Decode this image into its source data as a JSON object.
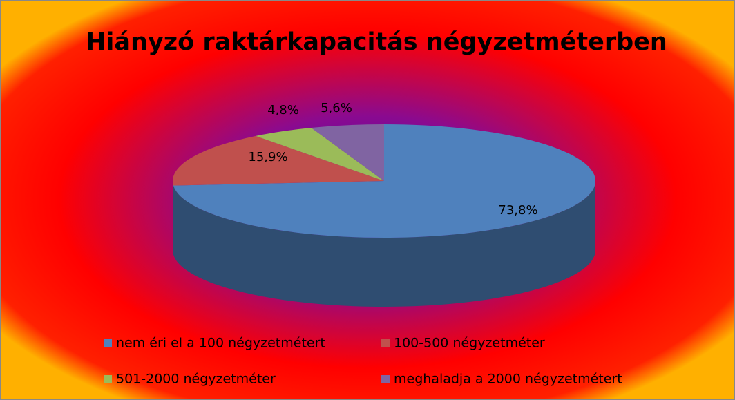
{
  "chart_data": {
    "type": "pie3d",
    "title": "Hiányzó raktárkapacitás négyzetméterben",
    "categories": [
      "nem éri el a 100 négyzetmétert",
      "100-500 négyzetméter",
      "501-2000 négyzetméter",
      "meghaladja a 2000 négyzetmétert"
    ],
    "values": [
      73.8,
      15.9,
      4.8,
      5.6
    ],
    "value_labels": [
      "73,8%",
      "15,9%",
      "4,8%",
      "5,6%"
    ],
    "colors": [
      "#4f81bd",
      "#c0504d",
      "#9bbb59",
      "#8064a2"
    ],
    "legend": "bottom"
  }
}
